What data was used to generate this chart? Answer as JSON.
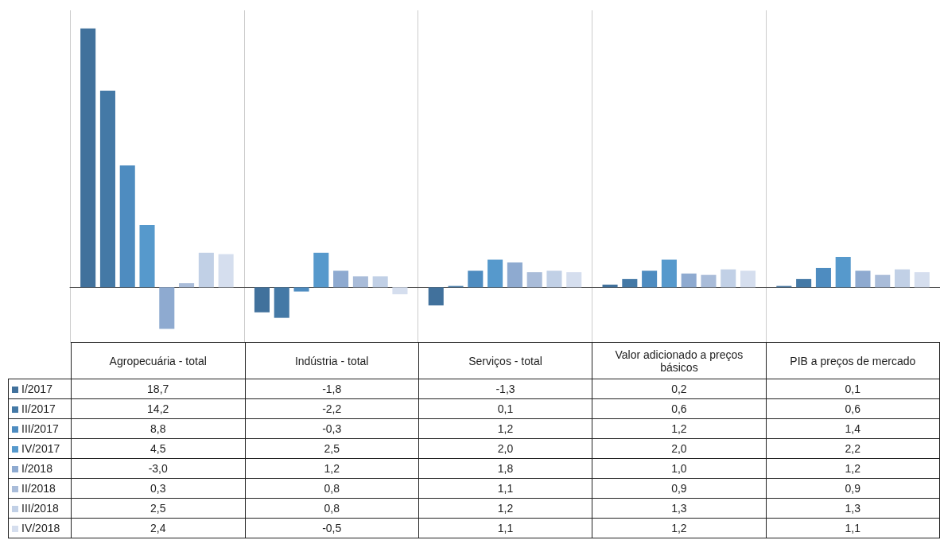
{
  "chart_data": {
    "type": "bar",
    "categories": [
      "Agropecuária - total",
      "Indústria - total",
      "Serviços - total",
      "Valor adicionado a preços básicos",
      "PIB a preços de mercado"
    ],
    "series": [
      {
        "name": "I/2017",
        "color": "#41719c",
        "values": [
          18.7,
          -1.8,
          -1.3,
          0.2,
          0.1
        ],
        "value_labels": [
          "18,7",
          "-1,8",
          "-1,3",
          "0,2",
          "0,1"
        ]
      },
      {
        "name": "II/2017",
        "color": "#4479a6",
        "values": [
          14.2,
          -2.2,
          0.1,
          0.6,
          0.6
        ],
        "value_labels": [
          "14,2",
          "-2,2",
          "0,1",
          "0,6",
          "0,6"
        ]
      },
      {
        "name": "III/2017",
        "color": "#4e8cc0",
        "values": [
          8.8,
          -0.3,
          1.2,
          1.2,
          1.4
        ],
        "value_labels": [
          "8,8",
          "-0,3",
          "1,2",
          "1,2",
          "1,4"
        ]
      },
      {
        "name": "IV/2017",
        "color": "#5699cc",
        "values": [
          4.5,
          2.5,
          2.0,
          2.0,
          2.2
        ],
        "value_labels": [
          "4,5",
          "2,5",
          "2,0",
          "2,0",
          "2,2"
        ]
      },
      {
        "name": "I/2018",
        "color": "#8eaad0",
        "values": [
          -3.0,
          1.2,
          1.8,
          1.0,
          1.2
        ],
        "value_labels": [
          "-3,0",
          "1,2",
          "1,8",
          "1,0",
          "1,2"
        ]
      },
      {
        "name": "II/2018",
        "color": "#a9bcd9",
        "values": [
          0.3,
          0.8,
          1.1,
          0.9,
          0.9
        ],
        "value_labels": [
          "0,3",
          "0,8",
          "1,1",
          "0,9",
          "0,9"
        ]
      },
      {
        "name": "III/2018",
        "color": "#c1d0e6",
        "values": [
          2.5,
          0.8,
          1.2,
          1.3,
          1.3
        ],
        "value_labels": [
          "2,5",
          "0,8",
          "1,2",
          "1,3",
          "1,3"
        ]
      },
      {
        "name": "IV/2018",
        "color": "#d5deee",
        "values": [
          2.4,
          -0.5,
          1.1,
          1.2,
          1.1
        ],
        "value_labels": [
          "2,4",
          "-0,5",
          "1,1",
          "1,2",
          "1,1"
        ]
      }
    ],
    "tick_labels": "x",
    "legend": "bottom",
    "grid": "x"
  }
}
